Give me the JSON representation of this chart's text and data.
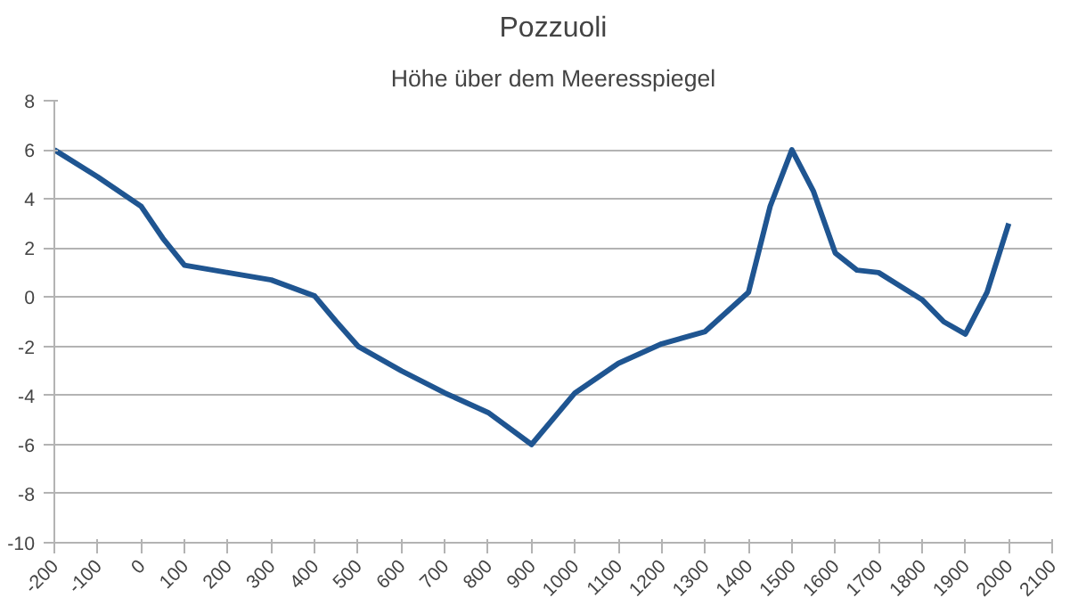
{
  "chart_data": {
    "type": "line",
    "title": "Pozzuoli",
    "subtitle": "Höhe über dem Meeresspiegel",
    "x": [
      -200,
      -100,
      0,
      50,
      100,
      200,
      300,
      400,
      450,
      500,
      600,
      700,
      800,
      900,
      1000,
      1100,
      1200,
      1300,
      1400,
      1450,
      1500,
      1550,
      1600,
      1650,
      1700,
      1800,
      1850,
      1900,
      1950,
      2000
    ],
    "series": [
      {
        "color": "#1f5591",
        "values": [
          6,
          4.9,
          3.7,
          2.4,
          1.3,
          1.0,
          0.7,
          0.05,
          -1.0,
          -2.0,
          -3.0,
          -3.9,
          -4.7,
          -6.0,
          -3.9,
          -2.7,
          -1.9,
          -1.4,
          0.2,
          3.7,
          6.0,
          4.3,
          1.8,
          1.1,
          1.0,
          -0.1,
          -1.0,
          -1.5,
          0.2,
          3.0
        ]
      }
    ],
    "xlim": [
      -200,
      2100
    ],
    "xticks": [
      -200,
      -100,
      0,
      100,
      200,
      300,
      400,
      500,
      600,
      700,
      800,
      900,
      1000,
      1100,
      1200,
      1300,
      1400,
      1500,
      1600,
      1700,
      1800,
      1900,
      2000,
      2100
    ],
    "ylim": [
      -10,
      8
    ],
    "yticks": [
      -10,
      -8,
      -6,
      -4,
      -2,
      0,
      2,
      4,
      6,
      8
    ],
    "grid": "y",
    "marker": "none",
    "line_style": "solid"
  }
}
